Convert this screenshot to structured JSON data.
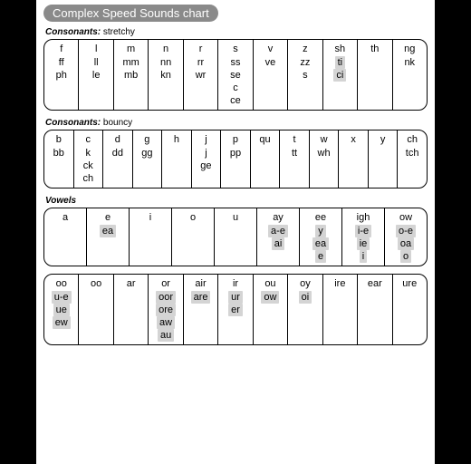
{
  "title": "Complex Speed Sounds chart",
  "shade_color": "#d4d4d4",
  "border_color": "#000000",
  "sections": [
    {
      "label_bold": "Consonants:",
      "label_rest": " stretchy",
      "columns": [
        {
          "cells": [
            {
              "t": "f"
            },
            {
              "t": "ff"
            },
            {
              "t": "ph"
            }
          ]
        },
        {
          "cells": [
            {
              "t": "l"
            },
            {
              "t": "ll"
            },
            {
              "t": "le"
            }
          ]
        },
        {
          "cells": [
            {
              "t": "m"
            },
            {
              "t": "mm"
            },
            {
              "t": "mb"
            }
          ]
        },
        {
          "cells": [
            {
              "t": "n"
            },
            {
              "t": "nn"
            },
            {
              "t": "kn"
            }
          ]
        },
        {
          "cells": [
            {
              "t": "r"
            },
            {
              "t": "rr"
            },
            {
              "t": "wr"
            }
          ]
        },
        {
          "cells": [
            {
              "t": "s"
            },
            {
              "t": "ss"
            },
            {
              "t": "se"
            },
            {
              "t": "c"
            },
            {
              "t": "ce"
            }
          ]
        },
        {
          "cells": [
            {
              "t": "v"
            },
            {
              "t": "ve"
            }
          ]
        },
        {
          "cells": [
            {
              "t": "z"
            },
            {
              "t": "zz"
            },
            {
              "t": "s"
            }
          ]
        },
        {
          "cells": [
            {
              "t": "sh"
            },
            {
              "t": "ti",
              "s": true
            },
            {
              "t": "ci",
              "s": true
            }
          ]
        },
        {
          "cells": [
            {
              "t": "th"
            }
          ]
        },
        {
          "cells": [
            {
              "t": "ng"
            },
            {
              "t": "nk"
            }
          ]
        }
      ]
    },
    {
      "label_bold": "Consonants:",
      "label_rest": " bouncy",
      "columns": [
        {
          "cells": [
            {
              "t": "b"
            },
            {
              "t": "bb"
            }
          ]
        },
        {
          "cells": [
            {
              "t": "c"
            },
            {
              "t": "k"
            },
            {
              "t": "ck"
            },
            {
              "t": "ch"
            }
          ]
        },
        {
          "cells": [
            {
              "t": "d"
            },
            {
              "t": "dd"
            }
          ]
        },
        {
          "cells": [
            {
              "t": "g"
            },
            {
              "t": "gg"
            }
          ]
        },
        {
          "cells": [
            {
              "t": "h"
            }
          ]
        },
        {
          "cells": [
            {
              "t": "j"
            },
            {
              "t": "j"
            },
            {
              "t": "ge"
            }
          ]
        },
        {
          "cells": [
            {
              "t": "p"
            },
            {
              "t": "pp"
            }
          ]
        },
        {
          "cells": [
            {
              "t": "qu"
            }
          ]
        },
        {
          "cells": [
            {
              "t": "t"
            },
            {
              "t": "tt"
            }
          ]
        },
        {
          "cells": [
            {
              "t": "w"
            },
            {
              "t": "wh"
            }
          ]
        },
        {
          "cells": [
            {
              "t": "x"
            }
          ]
        },
        {
          "cells": [
            {
              "t": "y"
            }
          ]
        },
        {
          "cells": [
            {
              "t": "ch"
            },
            {
              "t": "tch"
            }
          ]
        }
      ]
    },
    {
      "label_bold": "Vowels",
      "label_rest": "",
      "columns": [
        {
          "cells": [
            {
              "t": "a"
            }
          ]
        },
        {
          "cells": [
            {
              "t": "e"
            },
            {
              "t": "ea",
              "s": true
            }
          ]
        },
        {
          "cells": [
            {
              "t": "i"
            }
          ]
        },
        {
          "cells": [
            {
              "t": "o"
            }
          ]
        },
        {
          "cells": [
            {
              "t": "u"
            }
          ]
        },
        {
          "cells": [
            {
              "t": "ay"
            },
            {
              "t": "a-e",
              "s": true
            },
            {
              "t": "ai",
              "s": true
            }
          ]
        },
        {
          "cells": [
            {
              "t": "ee"
            },
            {
              "t": "y",
              "s": true
            },
            {
              "t": "ea",
              "s": true
            },
            {
              "t": "e",
              "s": true
            }
          ]
        },
        {
          "cells": [
            {
              "t": "igh"
            },
            {
              "t": "i-e",
              "s": true
            },
            {
              "t": "ie",
              "s": true
            },
            {
              "t": "i",
              "s": true
            }
          ]
        },
        {
          "cells": [
            {
              "t": "ow"
            },
            {
              "t": "o-e",
              "s": true
            },
            {
              "t": "oa",
              "s": true
            },
            {
              "t": "o",
              "s": true
            }
          ]
        }
      ]
    },
    {
      "label_bold": "",
      "label_rest": "",
      "no_label": true,
      "columns": [
        {
          "cells": [
            {
              "t": "oo"
            },
            {
              "t": "u-e",
              "s": true
            },
            {
              "t": "ue",
              "s": true
            },
            {
              "t": "ew",
              "s": true
            }
          ]
        },
        {
          "cells": [
            {
              "t": "oo"
            }
          ]
        },
        {
          "cells": [
            {
              "t": "ar"
            }
          ]
        },
        {
          "cells": [
            {
              "t": "or"
            },
            {
              "t": "oor",
              "s": true
            },
            {
              "t": "ore",
              "s": true
            },
            {
              "t": "aw",
              "s": true
            },
            {
              "t": "au",
              "s": true
            }
          ]
        },
        {
          "cells": [
            {
              "t": "air"
            },
            {
              "t": "are",
              "s": true
            }
          ]
        },
        {
          "cells": [
            {
              "t": "ir"
            },
            {
              "t": "ur",
              "s": true
            },
            {
              "t": "er",
              "s": true
            }
          ]
        },
        {
          "cells": [
            {
              "t": "ou"
            },
            {
              "t": "ow",
              "s": true
            }
          ]
        },
        {
          "cells": [
            {
              "t": "oy"
            },
            {
              "t": "oi",
              "s": true
            }
          ]
        },
        {
          "cells": [
            {
              "t": "ire"
            }
          ]
        },
        {
          "cells": [
            {
              "t": "ear"
            }
          ]
        },
        {
          "cells": [
            {
              "t": "ure"
            }
          ]
        }
      ]
    }
  ]
}
